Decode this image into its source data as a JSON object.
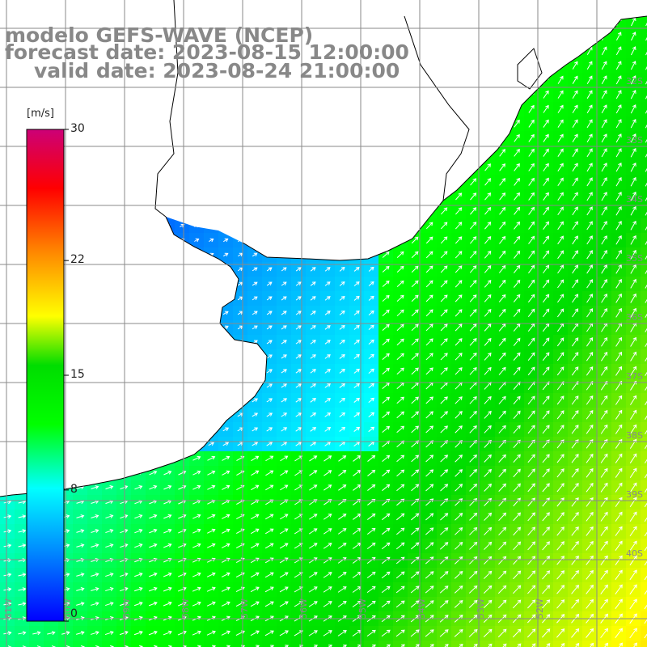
{
  "title_lines": [
    "modelo GEFS-WAVE (NCEP)",
    "forecast date: 2023-08-15 12:00:00",
    "valid date: 2023-08-24 21:00:00"
  ],
  "colorbar": {
    "unit": "[m/s]",
    "min": 0,
    "max": 30,
    "tick_labels": [
      "30",
      "22",
      "15",
      "8",
      "0"
    ],
    "tick_values": [
      30,
      22,
      15,
      8,
      0
    ],
    "colors": [
      "#0000ff",
      "#0088ff",
      "#00ffff",
      "#00ff00",
      "#ffff00",
      "#ff8800",
      "#ff0000",
      "#cc0077"
    ]
  },
  "map": {
    "lat_labels": [
      "32S",
      "33S",
      "34S",
      "35S",
      "36S",
      "37S",
      "38S",
      "39S",
      "40S"
    ],
    "lon_labels": [
      "61W",
      "60W",
      "59W",
      "58W",
      "57W",
      "56W",
      "55W",
      "54W",
      "53W",
      "52W"
    ],
    "land_color": "#ffffff",
    "grid_color": "#8a8a8a",
    "coast_color": "#000000",
    "arrow_color": "#ffffff"
  }
}
